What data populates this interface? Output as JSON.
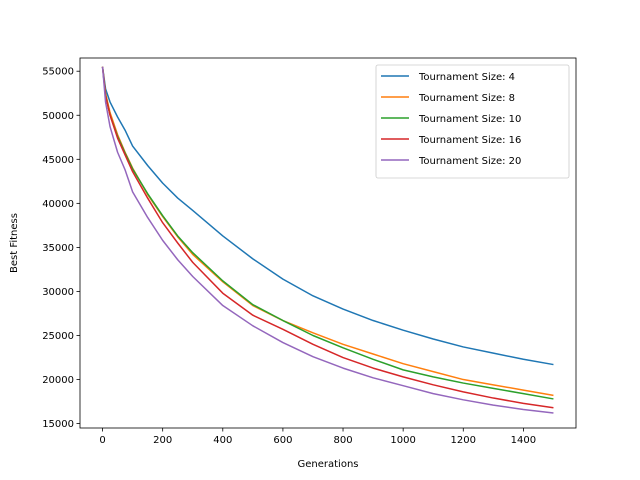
{
  "chart_data": {
    "type": "line",
    "title": "",
    "xlabel": "Generations",
    "ylabel": "Best Fitness",
    "xlim": [
      -75,
      1575
    ],
    "ylim": [
      14500,
      56500
    ],
    "x_ticks": [
      0,
      200,
      400,
      600,
      800,
      1000,
      1200,
      1400
    ],
    "y_ticks": [
      15000,
      20000,
      25000,
      30000,
      35000,
      40000,
      45000,
      50000,
      55000
    ],
    "grid": false,
    "legend_position": "top-right",
    "x": [
      0,
      10,
      25,
      50,
      75,
      100,
      150,
      200,
      250,
      300,
      400,
      500,
      600,
      700,
      800,
      900,
      1000,
      1100,
      1200,
      1300,
      1400,
      1500
    ],
    "series": [
      {
        "name": "Tournament Size: 4",
        "color": "#1f77b4",
        "values": [
          55500,
          53000,
          51500,
          49800,
          48300,
          46500,
          44300,
          42300,
          40600,
          39200,
          36300,
          33700,
          31400,
          29500,
          28000,
          26700,
          25600,
          24600,
          23700,
          23000,
          22300,
          21700
        ]
      },
      {
        "name": "Tournament Size: 8",
        "color": "#ff7f0e",
        "values": [
          55500,
          52500,
          50300,
          47800,
          45800,
          44000,
          41000,
          38500,
          36200,
          34200,
          31100,
          28400,
          26700,
          25300,
          24000,
          22900,
          21800,
          20900,
          20000,
          19400,
          18800,
          18200
        ]
      },
      {
        "name": "Tournament Size: 10",
        "color": "#2ca02c",
        "values": [
          55500,
          52300,
          50000,
          47600,
          45700,
          43900,
          41100,
          38600,
          36300,
          34400,
          31200,
          28500,
          26700,
          25000,
          23600,
          22300,
          21100,
          20300,
          19600,
          19000,
          18400,
          17800
        ]
      },
      {
        "name": "Tournament Size: 16",
        "color": "#d62728",
        "values": [
          55500,
          52200,
          50000,
          47400,
          45500,
          43600,
          40600,
          37800,
          35500,
          33300,
          29800,
          27300,
          25700,
          24000,
          22500,
          21300,
          20300,
          19400,
          18600,
          17900,
          17300,
          16800
        ]
      },
      {
        "name": "Tournament Size: 20",
        "color": "#9467bd",
        "values": [
          55500,
          51500,
          48700,
          45800,
          43800,
          41300,
          38400,
          35800,
          33600,
          31700,
          28400,
          26100,
          24200,
          22600,
          21300,
          20200,
          19300,
          18400,
          17700,
          17100,
          16600,
          16200
        ]
      }
    ]
  }
}
